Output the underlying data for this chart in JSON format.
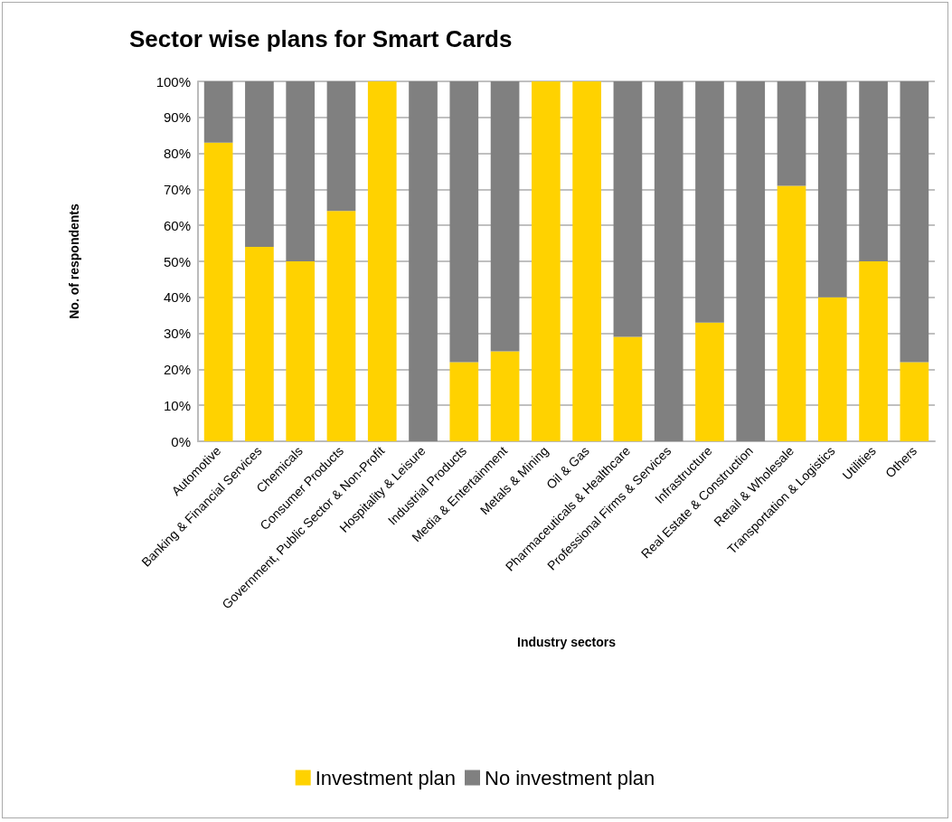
{
  "chart_data": {
    "type": "bar",
    "stacked": true,
    "title": "Sector wise plans for Smart Cards",
    "xlabel": "Industry sectors",
    "ylabel": "No. of respondents",
    "categories": [
      "Automotive",
      "Banking & Financial Services",
      "Chemicals",
      "Consumer Products",
      "Government, Public Sector & Non-Profit",
      "Hospitality & Leisure",
      "Industrial Products",
      "Media & Entertainment",
      "Metals & Mining",
      "Oil & Gas",
      "Pharmaceuticals & Healthcare",
      "Professional Firms & Services",
      "Infrastructure",
      "Real Estate & Construction",
      "Retail & Wholesale",
      "Transportation & Logistics",
      "Utilities",
      "Others"
    ],
    "series": [
      {
        "name": "Investment plan",
        "color": "#ffd200",
        "values": [
          83,
          54,
          50,
          64,
          100,
          0,
          22,
          25,
          100,
          100,
          29,
          0,
          33,
          0,
          71,
          40,
          50,
          22
        ]
      },
      {
        "name": "No investment plan",
        "color": "#808080",
        "values": [
          17,
          46,
          50,
          36,
          0,
          100,
          78,
          75,
          0,
          0,
          71,
          100,
          67,
          100,
          29,
          60,
          50,
          78
        ]
      }
    ],
    "ylim": [
      0,
      100
    ],
    "yticks": [
      {
        "value": 0,
        "label": "0%"
      },
      {
        "value": 10,
        "label": "10%"
      },
      {
        "value": 20,
        "label": "20%"
      },
      {
        "value": 30,
        "label": "30%"
      },
      {
        "value": 40,
        "label": "40%"
      },
      {
        "value": 50,
        "label": "50%"
      },
      {
        "value": 60,
        "label": "60%"
      },
      {
        "value": 70,
        "label": "70%"
      },
      {
        "value": 80,
        "label": "80%"
      },
      {
        "value": 90,
        "label": "90%"
      },
      {
        "value": 100,
        "label": "100%"
      }
    ],
    "grid": "y",
    "legend": "bottom"
  }
}
